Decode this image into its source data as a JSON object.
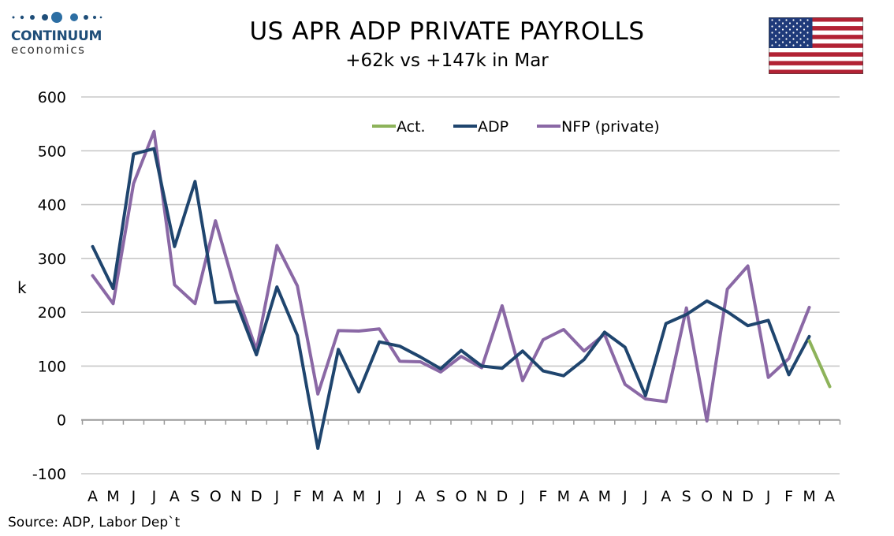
{
  "logo": {
    "brand": "CONTINUUM",
    "sub": "economics"
  },
  "header": {
    "title": "US APR ADP PRIVATE PAYROLLS",
    "subtitle": "+62k vs +147k in Mar"
  },
  "source": "Source: ADP, Labor Dep`t",
  "chart_data": {
    "type": "line",
    "title": "US APR ADP PRIVATE PAYROLLS",
    "subtitle": "+62k vs +147k in Mar",
    "ylabel": "k",
    "xlabel": "",
    "ylim": [
      -100,
      600
    ],
    "yticks": [
      -100,
      0,
      100,
      200,
      300,
      400,
      500,
      600
    ],
    "grid": true,
    "legend_position": "top-center",
    "categories": [
      "A",
      "M",
      "J",
      "J",
      "A",
      "S",
      "O",
      "N",
      "D",
      "J",
      "F",
      "M",
      "A",
      "M",
      "J",
      "J",
      "A",
      "S",
      "O",
      "N",
      "D",
      "J",
      "F",
      "M",
      "A",
      "M",
      "J",
      "J",
      "A",
      "S",
      "O",
      "N",
      "D",
      "J",
      "F",
      "M",
      "A"
    ],
    "series": [
      {
        "name": "Act.",
        "color": "#8db35a",
        "values": [
          null,
          null,
          null,
          null,
          null,
          null,
          null,
          null,
          null,
          null,
          null,
          null,
          null,
          null,
          null,
          null,
          null,
          null,
          null,
          null,
          null,
          null,
          null,
          null,
          null,
          null,
          null,
          null,
          null,
          null,
          null,
          null,
          null,
          null,
          null,
          147,
          62
        ]
      },
      {
        "name": "ADP",
        "color": "#1f456e",
        "values": [
          322,
          244,
          494,
          504,
          322,
          443,
          218,
          220,
          121,
          247,
          157,
          -53,
          131,
          52,
          145,
          137,
          117,
          95,
          129,
          100,
          96,
          128,
          91,
          82,
          112,
          163,
          135,
          45,
          179,
          196,
          221,
          201,
          175,
          185,
          84,
          155,
          null
        ]
      },
      {
        "name": "NFP (private)",
        "color": "#8a68a5",
        "values": [
          268,
          216,
          439,
          536,
          251,
          216,
          370,
          238,
          130,
          324,
          249,
          48,
          166,
          165,
          169,
          109,
          108,
          89,
          118,
          97,
          212,
          73,
          149,
          168,
          128,
          159,
          66,
          39,
          34,
          208,
          -2,
          243,
          286,
          79,
          114,
          209,
          null
        ]
      }
    ]
  },
  "flag": {
    "name": "us-flag-icon",
    "stripe_red": "#b22234",
    "canton_blue": "#1f3a7a"
  }
}
